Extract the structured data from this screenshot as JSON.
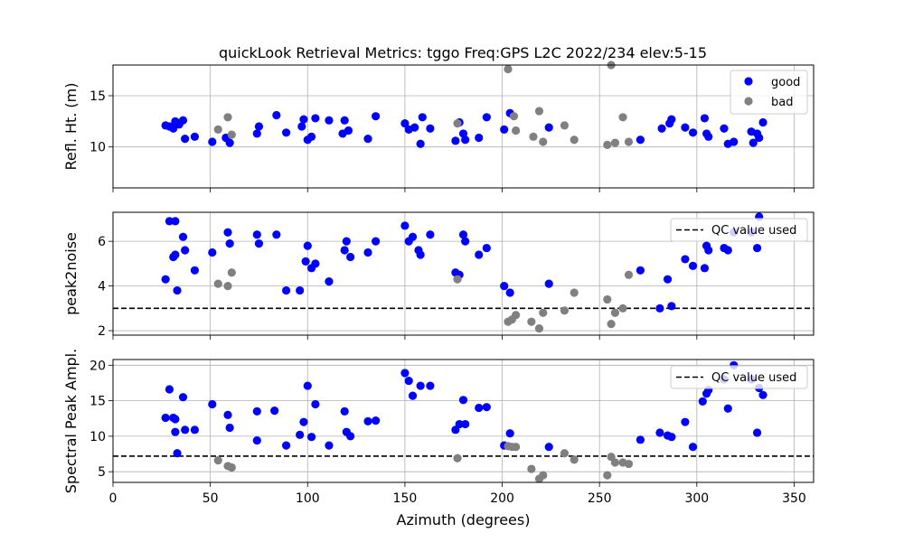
{
  "chart_data": [
    {
      "type": "scatter",
      "title": "quickLook Retrieval Metrics: tggo Freq:GPS L2C 2022/234  elev:5-15",
      "xlabel": "",
      "ylabel": "Refl. Ht. (m)",
      "xlim": [
        0,
        360
      ],
      "ylim": [
        6,
        18
      ],
      "yticks": [
        10,
        15
      ],
      "grid": true,
      "legend_position": "upper-right",
      "series": [
        {
          "name": "good",
          "color": "#0000ff",
          "points": [
            [
              27,
              12.1
            ],
            [
              29,
              12.0
            ],
            [
              31,
              11.8
            ],
            [
              32,
              12.5
            ],
            [
              34,
              12.2
            ],
            [
              36,
              12.6
            ],
            [
              37,
              10.8
            ],
            [
              42,
              11.0
            ],
            [
              51,
              10.5
            ],
            [
              58,
              10.9
            ],
            [
              60,
              10.4
            ],
            [
              74,
              11.3
            ],
            [
              75,
              12.0
            ],
            [
              84,
              13.1
            ],
            [
              89,
              11.4
            ],
            [
              97,
              12.0
            ],
            [
              98,
              12.7
            ],
            [
              100,
              10.7
            ],
            [
              102,
              11.0
            ],
            [
              104,
              12.8
            ],
            [
              111,
              12.6
            ],
            [
              118,
              11.3
            ],
            [
              119,
              12.6
            ],
            [
              121,
              11.6
            ],
            [
              131,
              10.8
            ],
            [
              135,
              13.0
            ],
            [
              150,
              12.3
            ],
            [
              152,
              11.7
            ],
            [
              155,
              11.9
            ],
            [
              158,
              10.3
            ],
            [
              159,
              12.9
            ],
            [
              163,
              11.8
            ],
            [
              176,
              10.6
            ],
            [
              178,
              12.4
            ],
            [
              180,
              11.3
            ],
            [
              181,
              10.7
            ],
            [
              188,
              10.9
            ],
            [
              192,
              12.9
            ],
            [
              201,
              11.7
            ],
            [
              204,
              13.3
            ],
            [
              224,
              11.9
            ],
            [
              271,
              10.7
            ],
            [
              282,
              11.8
            ],
            [
              286,
              12.3
            ],
            [
              287,
              12.7
            ],
            [
              294,
              11.9
            ],
            [
              298,
              11.4
            ],
            [
              304,
              12.8
            ],
            [
              305,
              11.3
            ],
            [
              306,
              11.0
            ],
            [
              314,
              11.8
            ],
            [
              316,
              10.3
            ],
            [
              319,
              10.5
            ],
            [
              328,
              11.5
            ],
            [
              329,
              10.4
            ],
            [
              331,
              11.3
            ],
            [
              332,
              10.9
            ],
            [
              334,
              12.4
            ]
          ]
        },
        {
          "name": "bad",
          "color": "#808080",
          "points": [
            [
              54,
              11.7
            ],
            [
              59,
              12.9
            ],
            [
              61,
              11.2
            ],
            [
              177,
              12.3
            ],
            [
              203,
              17.6
            ],
            [
              206,
              13.0
            ],
            [
              207,
              11.6
            ],
            [
              216,
              11.0
            ],
            [
              219,
              13.5
            ],
            [
              221,
              10.5
            ],
            [
              232,
              12.1
            ],
            [
              237,
              10.7
            ],
            [
              254,
              10.2
            ],
            [
              256,
              18.0
            ],
            [
              258,
              10.4
            ],
            [
              262,
              12.9
            ],
            [
              265,
              10.5
            ]
          ]
        }
      ]
    },
    {
      "type": "scatter",
      "title": "",
      "xlabel": "",
      "ylabel": "peak2noise",
      "xlim": [
        0,
        360
      ],
      "ylim": [
        1.8,
        7.3
      ],
      "yticks": [
        2,
        4,
        6
      ],
      "grid": true,
      "legend_position": "upper-right",
      "qc_line": {
        "value": 3.0,
        "label": "QC value used"
      },
      "series": [
        {
          "name": "",
          "color": "#0000ff",
          "points": [
            [
              27,
              4.3
            ],
            [
              29,
              6.9
            ],
            [
              31,
              5.3
            ],
            [
              32,
              6.9
            ],
            [
              32,
              5.4
            ],
            [
              33,
              3.8
            ],
            [
              36,
              6.2
            ],
            [
              37,
              5.6
            ],
            [
              42,
              4.7
            ],
            [
              51,
              5.5
            ],
            [
              59,
              6.4
            ],
            [
              60,
              5.9
            ],
            [
              74,
              6.3
            ],
            [
              75,
              5.9
            ],
            [
              84,
              6.3
            ],
            [
              89,
              3.8
            ],
            [
              96,
              3.8
            ],
            [
              99,
              5.1
            ],
            [
              100,
              5.8
            ],
            [
              102,
              4.8
            ],
            [
              104,
              5.0
            ],
            [
              111,
              4.2
            ],
            [
              119,
              5.6
            ],
            [
              120,
              6.0
            ],
            [
              122,
              5.3
            ],
            [
              131,
              5.5
            ],
            [
              135,
              6.0
            ],
            [
              150,
              6.7
            ],
            [
              152,
              6.0
            ],
            [
              154,
              6.2
            ],
            [
              157,
              5.6
            ],
            [
              158,
              5.4
            ],
            [
              163,
              6.3
            ],
            [
              176,
              4.6
            ],
            [
              178,
              4.5
            ],
            [
              180,
              6.3
            ],
            [
              181,
              6.0
            ],
            [
              188,
              5.4
            ],
            [
              192,
              5.7
            ],
            [
              201,
              4.0
            ],
            [
              204,
              3.7
            ],
            [
              224,
              4.1
            ],
            [
              271,
              4.7
            ],
            [
              281,
              3.0
            ],
            [
              285,
              4.3
            ],
            [
              287,
              3.1
            ],
            [
              294,
              5.2
            ],
            [
              298,
              4.9
            ],
            [
              304,
              4.8
            ],
            [
              305,
              5.8
            ],
            [
              306,
              5.6
            ],
            [
              314,
              5.7
            ],
            [
              316,
              5.6
            ],
            [
              319,
              6.4
            ],
            [
              328,
              6.4
            ],
            [
              331,
              5.7
            ],
            [
              332,
              7.1
            ]
          ]
        },
        {
          "name": "",
          "color": "#808080",
          "points": [
            [
              54,
              4.1
            ],
            [
              59,
              4.0
            ],
            [
              61,
              4.6
            ],
            [
              177,
              4.3
            ],
            [
              203,
              2.4
            ],
            [
              205,
              2.5
            ],
            [
              207,
              2.7
            ],
            [
              215,
              2.4
            ],
            [
              219,
              2.1
            ],
            [
              221,
              2.8
            ],
            [
              232,
              2.9
            ],
            [
              237,
              3.7
            ],
            [
              254,
              3.4
            ],
            [
              256,
              2.3
            ],
            [
              258,
              2.8
            ],
            [
              262,
              3.0
            ],
            [
              265,
              4.5
            ]
          ]
        }
      ]
    },
    {
      "type": "scatter",
      "title": "",
      "xlabel": "Azimuth (degrees)",
      "ylabel": "Spectral Peak Ampl.",
      "xlim": [
        0,
        360
      ],
      "xticks": [
        0,
        50,
        100,
        150,
        200,
        250,
        300,
        350
      ],
      "ylim": [
        3.5,
        20.8
      ],
      "yticks": [
        5,
        10,
        15,
        20
      ],
      "grid": true,
      "legend_position": "upper-right",
      "qc_line": {
        "value": 7.2,
        "label": "QC value used"
      },
      "series": [
        {
          "name": "",
          "color": "#0000ff",
          "points": [
            [
              27,
              12.6
            ],
            [
              29,
              16.6
            ],
            [
              31,
              12.6
            ],
            [
              32,
              10.6
            ],
            [
              32,
              12.4
            ],
            [
              33,
              7.6
            ],
            [
              36,
              15.5
            ],
            [
              37,
              10.9
            ],
            [
              42,
              10.9
            ],
            [
              51,
              14.5
            ],
            [
              59,
              13.0
            ],
            [
              60,
              11.2
            ],
            [
              74,
              13.5
            ],
            [
              74,
              9.4
            ],
            [
              83,
              13.6
            ],
            [
              89,
              8.7
            ],
            [
              96,
              10.2
            ],
            [
              98,
              12.0
            ],
            [
              100,
              17.1
            ],
            [
              102,
              9.9
            ],
            [
              104,
              14.5
            ],
            [
              111,
              8.7
            ],
            [
              119,
              13.5
            ],
            [
              120,
              10.6
            ],
            [
              122,
              10.0
            ],
            [
              131,
              12.1
            ],
            [
              135,
              12.2
            ],
            [
              150,
              18.9
            ],
            [
              152,
              17.8
            ],
            [
              154,
              15.7
            ],
            [
              158,
              17.1
            ],
            [
              163,
              17.1
            ],
            [
              176,
              10.9
            ],
            [
              178,
              11.7
            ],
            [
              180,
              15.1
            ],
            [
              181,
              11.7
            ],
            [
              188,
              14.0
            ],
            [
              192,
              14.1
            ],
            [
              201,
              8.7
            ],
            [
              204,
              10.4
            ],
            [
              224,
              8.5
            ],
            [
              271,
              9.5
            ],
            [
              281,
              10.5
            ],
            [
              285,
              10.1
            ],
            [
              287,
              9.9
            ],
            [
              294,
              12.0
            ],
            [
              298,
              8.5
            ],
            [
              303,
              14.9
            ],
            [
              305,
              16.0
            ],
            [
              306,
              16.5
            ],
            [
              314,
              18.0
            ],
            [
              316,
              13.9
            ],
            [
              319,
              20.0
            ],
            [
              328,
              18.0
            ],
            [
              331,
              10.5
            ],
            [
              332,
              16.8
            ],
            [
              334,
              15.8
            ]
          ]
        },
        {
          "name": "",
          "color": "#808080",
          "points": [
            [
              54,
              6.6
            ],
            [
              59,
              5.8
            ],
            [
              61,
              5.6
            ],
            [
              177,
              6.9
            ],
            [
              203,
              8.6
            ],
            [
              205,
              8.5
            ],
            [
              207,
              8.5
            ],
            [
              215,
              5.4
            ],
            [
              219,
              4.0
            ],
            [
              221,
              4.5
            ],
            [
              232,
              7.6
            ],
            [
              237,
              6.7
            ],
            [
              254,
              4.5
            ],
            [
              256,
              7.1
            ],
            [
              258,
              6.3
            ],
            [
              262,
              6.3
            ],
            [
              265,
              6.1
            ]
          ]
        }
      ]
    }
  ]
}
